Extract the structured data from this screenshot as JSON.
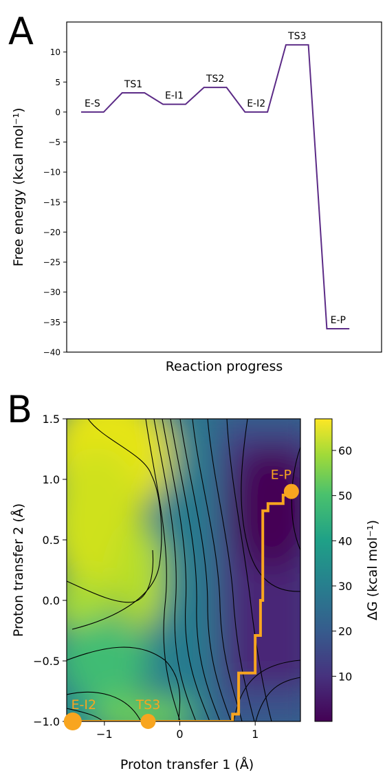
{
  "chart_data": [
    {
      "panel": "A",
      "type": "line",
      "xlabel": "Reaction progress",
      "ylabel": "Free energy (kcal mol⁻¹)",
      "ylim": [
        -40,
        15
      ],
      "yticks": [
        10,
        5,
        0,
        -5,
        -10,
        -15,
        -20,
        -25,
        -30,
        -35,
        -40
      ],
      "line_color": "#5b2a86",
      "states": [
        {
          "label": "E-S",
          "value": 0.0
        },
        {
          "label": "TS1",
          "value": 3.2
        },
        {
          "label": "E-I1",
          "value": 1.3
        },
        {
          "label": "TS2",
          "value": 4.1
        },
        {
          "label": "E-I2",
          "value": 0.0
        },
        {
          "label": "TS3",
          "value": 11.2
        },
        {
          "label": "E-P",
          "value": -36.1
        }
      ]
    },
    {
      "panel": "B",
      "type": "heatmap",
      "xlabel": "Proton transfer 1 (Å)",
      "ylabel": "Proton transfer 2 (Å)",
      "xlim": [
        -1.5,
        1.6
      ],
      "ylim": [
        -1.0,
        1.5
      ],
      "xticks": [
        -1,
        0,
        1
      ],
      "yticks": [
        1.5,
        1.0,
        0.5,
        0.0,
        -0.5,
        -1.0
      ],
      "colorbar_label": "ΔG (kcal mol⁻¹)",
      "colorbar_ticks": [
        60,
        50,
        40,
        30,
        20,
        10
      ],
      "colorbar_range": [
        0,
        67
      ],
      "colormap": "viridis",
      "path_color": "#f8a51f",
      "path": [
        [
          -1.4,
          -1.0
        ],
        [
          -0.4,
          -1.0
        ],
        [
          0.7,
          -1.0
        ],
        [
          0.7,
          -0.94
        ],
        [
          0.78,
          -0.94
        ],
        [
          0.78,
          -0.6
        ],
        [
          1.0,
          -0.6
        ],
        [
          1.0,
          -0.29
        ],
        [
          1.07,
          -0.29
        ],
        [
          1.07,
          0.0
        ],
        [
          1.1,
          0.0
        ],
        [
          1.1,
          0.74
        ],
        [
          1.17,
          0.74
        ],
        [
          1.17,
          0.8
        ],
        [
          1.37,
          0.8
        ],
        [
          1.37,
          0.87
        ],
        [
          1.42,
          0.87
        ],
        [
          1.42,
          0.9
        ],
        [
          1.48,
          0.9
        ]
      ],
      "points": [
        {
          "label": "E-I2",
          "x": -1.42,
          "y": -1.0
        },
        {
          "label": "TS3",
          "x": -0.42,
          "y": -1.0
        },
        {
          "label": "E-P",
          "x": 1.48,
          "y": 0.9
        }
      ]
    }
  ],
  "panels": {
    "a": "A",
    "b": "B"
  }
}
